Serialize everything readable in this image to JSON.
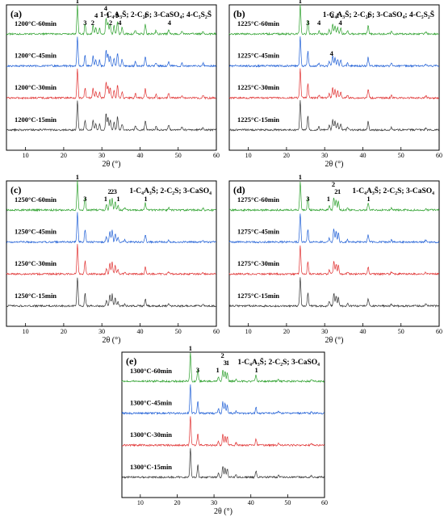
{
  "chart_data": [
    {
      "type": "line",
      "panel_label": "(a)",
      "legend": "1-C₄A₃S̄; 2-C₂S; 3-CaSO₄; 4-C₅S₂S̄",
      "xlabel": "2θ (°)",
      "xlim": [
        5,
        60
      ],
      "xticks": [
        "10",
        "20",
        "30",
        "40",
        "50",
        "60"
      ],
      "series": [
        {
          "name": "1200°C-60min",
          "color": "#2ca02c"
        },
        {
          "name": "1200°C-45min",
          "color": "#1f5fd6"
        },
        {
          "name": "1200°C-30min",
          "color": "#e03030"
        },
        {
          "name": "1200°C-15min",
          "color": "#333333"
        }
      ],
      "peaks": [
        {
          "x": 23.6,
          "h": 1.0
        },
        {
          "x": 25.6,
          "h": 0.35
        },
        {
          "x": 27.7,
          "h": 0.33
        },
        {
          "x": 28.4,
          "h": 0.22
        },
        {
          "x": 29.4,
          "h": 0.2
        },
        {
          "x": 31.1,
          "h": 0.55
        },
        {
          "x": 31.6,
          "h": 0.42
        },
        {
          "x": 32.2,
          "h": 0.35
        },
        {
          "x": 33.2,
          "h": 0.28
        },
        {
          "x": 34.1,
          "h": 0.45
        },
        {
          "x": 35.3,
          "h": 0.22
        },
        {
          "x": 38.8,
          "h": 0.15
        },
        {
          "x": 41.4,
          "h": 0.32
        },
        {
          "x": 44.2,
          "h": 0.12
        },
        {
          "x": 47.5,
          "h": 0.16
        },
        {
          "x": 51.0,
          "h": 0.1
        },
        {
          "x": 56.5,
          "h": 0.1
        }
      ],
      "annotations": [
        {
          "x": 23.6,
          "text": "1",
          "level": 0
        },
        {
          "x": 25.6,
          "text": "3",
          "level": 3
        },
        {
          "x": 27.6,
          "text": "2",
          "level": 3
        },
        {
          "x": 28.5,
          "text": "4",
          "level": 2
        },
        {
          "x": 31.0,
          "text": "4",
          "level": 1
        },
        {
          "x": 31.6,
          "text": "1",
          "level": 2
        },
        {
          "x": 32.3,
          "text": "2",
          "level": 3
        },
        {
          "x": 33.9,
          "text": "1",
          "level": 2
        },
        {
          "x": 34.7,
          "text": "4",
          "level": 3
        },
        {
          "x": 41.5,
          "text": "1",
          "level": 2
        },
        {
          "x": 47.7,
          "text": "4",
          "level": 3
        }
      ]
    },
    {
      "type": "line",
      "panel_label": "(b)",
      "legend": "1-C₄A₃S̄; 2-C₂S; 3-CaSO₄; 4-C₅S₂S̄",
      "xlabel": "2θ (°)",
      "xlim": [
        5,
        60
      ],
      "xticks": [
        "10",
        "20",
        "30",
        "40",
        "50",
        "60"
      ],
      "series": [
        {
          "name": "1225°C-60min",
          "color": "#2ca02c"
        },
        {
          "name": "1225°C-45min",
          "color": "#1f5fd6"
        },
        {
          "name": "1225°C-30min",
          "color": "#e03030"
        },
        {
          "name": "1225°C-15min",
          "color": "#333333"
        }
      ],
      "peaks": [
        {
          "x": 23.6,
          "h": 1.0
        },
        {
          "x": 25.6,
          "h": 0.5
        },
        {
          "x": 28.5,
          "h": 0.1
        },
        {
          "x": 31.2,
          "h": 0.15
        },
        {
          "x": 32.1,
          "h": 0.35
        },
        {
          "x": 32.7,
          "h": 0.3
        },
        {
          "x": 33.4,
          "h": 0.25
        },
        {
          "x": 34.2,
          "h": 0.2
        },
        {
          "x": 36.0,
          "h": 0.1
        },
        {
          "x": 41.4,
          "h": 0.3
        },
        {
          "x": 47.5,
          "h": 0.08
        },
        {
          "x": 56.5,
          "h": 0.08
        }
      ],
      "annotations": [
        {
          "x": 23.6,
          "text": "1",
          "level": 0
        },
        {
          "x": 25.6,
          "text": "3",
          "level": 3
        },
        {
          "x": 28.5,
          "text": "4",
          "level": 3
        },
        {
          "x": 32.0,
          "text": "2",
          "level": 2
        },
        {
          "x": 33.4,
          "text": "1",
          "level": 2
        },
        {
          "x": 34.1,
          "text": "4",
          "level": 3
        },
        {
          "x": 41.5,
          "text": "1",
          "level": 2
        },
        {
          "x": 31.8,
          "text": "4",
          "level": 5
        }
      ]
    },
    {
      "type": "line",
      "panel_label": "(c)",
      "legend": "1-C₄A₃S̄; 2-C₂S; 3-CaSO₄",
      "xlabel": "2θ (°)",
      "xlim": [
        5,
        60
      ],
      "xticks": [
        "10",
        "20",
        "30",
        "40",
        "50",
        "60"
      ],
      "series": [
        {
          "name": "1250°C-60min",
          "color": "#2ca02c"
        },
        {
          "name": "1250°C-45min",
          "color": "#1f5fd6"
        },
        {
          "name": "1250°C-30min",
          "color": "#e03030"
        },
        {
          "name": "1250°C-15min",
          "color": "#333333"
        }
      ],
      "peaks": [
        {
          "x": 23.6,
          "h": 1.0
        },
        {
          "x": 25.6,
          "h": 0.45
        },
        {
          "x": 31.2,
          "h": 0.18
        },
        {
          "x": 32.1,
          "h": 0.38
        },
        {
          "x": 32.7,
          "h": 0.42
        },
        {
          "x": 33.5,
          "h": 0.3
        },
        {
          "x": 34.2,
          "h": 0.15
        },
        {
          "x": 36.0,
          "h": 0.08
        },
        {
          "x": 41.4,
          "h": 0.25
        },
        {
          "x": 47.5,
          "h": 0.08
        },
        {
          "x": 56.5,
          "h": 0.06
        }
      ],
      "annotations": [
        {
          "x": 23.6,
          "text": "1",
          "level": 0
        },
        {
          "x": 25.6,
          "text": "3",
          "level": 3
        },
        {
          "x": 31.0,
          "text": "1",
          "level": 3
        },
        {
          "x": 32.0,
          "text": "2",
          "level": 2
        },
        {
          "x": 32.7,
          "text": "2",
          "level": 2
        },
        {
          "x": 33.5,
          "text": "3",
          "level": 2
        },
        {
          "x": 34.3,
          "text": "1",
          "level": 3
        },
        {
          "x": 41.5,
          "text": "1",
          "level": 3
        }
      ]
    },
    {
      "type": "line",
      "panel_label": "(d)",
      "legend": "1-C₄A₃S̄; 2-C₂S; 3-CaSO₄",
      "xlabel": "2θ (°)",
      "xlim": [
        5,
        60
      ],
      "xticks": [
        "10",
        "20",
        "30",
        "40",
        "50",
        "60"
      ],
      "series": [
        {
          "name": "1275°C-60min",
          "color": "#2ca02c"
        },
        {
          "name": "1275°C-45min",
          "color": "#1f5fd6"
        },
        {
          "name": "1275°C-30min",
          "color": "#e03030"
        },
        {
          "name": "1275°C-15min",
          "color": "#333333"
        }
      ],
      "peaks": [
        {
          "x": 23.6,
          "h": 1.0
        },
        {
          "x": 25.6,
          "h": 0.45
        },
        {
          "x": 31.2,
          "h": 0.15
        },
        {
          "x": 32.4,
          "h": 0.45
        },
        {
          "x": 33.0,
          "h": 0.35
        },
        {
          "x": 33.6,
          "h": 0.3
        },
        {
          "x": 36.0,
          "h": 0.08
        },
        {
          "x": 41.4,
          "h": 0.25
        },
        {
          "x": 47.5,
          "h": 0.07
        },
        {
          "x": 56.5,
          "h": 0.06
        }
      ],
      "annotations": [
        {
          "x": 23.6,
          "text": "1",
          "level": 0
        },
        {
          "x": 25.6,
          "text": "3",
          "level": 3
        },
        {
          "x": 31.0,
          "text": "1",
          "level": 3
        },
        {
          "x": 32.3,
          "text": "2",
          "level": 1
        },
        {
          "x": 33.0,
          "text": "2",
          "level": 2
        },
        {
          "x": 33.8,
          "text": "1",
          "level": 2
        },
        {
          "x": 41.5,
          "text": "1",
          "level": 3
        }
      ]
    },
    {
      "type": "line",
      "panel_label": "(e)",
      "legend": "1-C₄A₃S̄; 2-C₂S; 3-CaSO₄",
      "xlabel": "2θ (°)",
      "xlim": [
        5,
        60
      ],
      "xticks": [
        "10",
        "20",
        "30",
        "40",
        "50",
        "60"
      ],
      "series": [
        {
          "name": "1300°C-60min",
          "color": "#2ca02c"
        },
        {
          "name": "1300°C-45min",
          "color": "#1f5fd6"
        },
        {
          "name": "1300°C-30min",
          "color": "#e03030"
        },
        {
          "name": "1300°C-15min",
          "color": "#333333"
        }
      ],
      "peaks": [
        {
          "x": 23.6,
          "h": 1.0
        },
        {
          "x": 25.6,
          "h": 0.42
        },
        {
          "x": 31.2,
          "h": 0.15
        },
        {
          "x": 32.4,
          "h": 0.4
        },
        {
          "x": 33.0,
          "h": 0.33
        },
        {
          "x": 33.6,
          "h": 0.3
        },
        {
          "x": 36.0,
          "h": 0.08
        },
        {
          "x": 41.4,
          "h": 0.22
        },
        {
          "x": 47.5,
          "h": 0.07
        },
        {
          "x": 56.5,
          "h": 0.06
        }
      ],
      "annotations": [
        {
          "x": 23.6,
          "text": "1",
          "level": 0
        },
        {
          "x": 25.6,
          "text": "3",
          "level": 3
        },
        {
          "x": 31.0,
          "text": "1",
          "level": 3
        },
        {
          "x": 32.3,
          "text": "2",
          "level": 1
        },
        {
          "x": 33.0,
          "text": "3",
          "level": 2
        },
        {
          "x": 33.7,
          "text": "1",
          "level": 2
        },
        {
          "x": 41.5,
          "text": "1",
          "level": 3
        }
      ]
    }
  ]
}
